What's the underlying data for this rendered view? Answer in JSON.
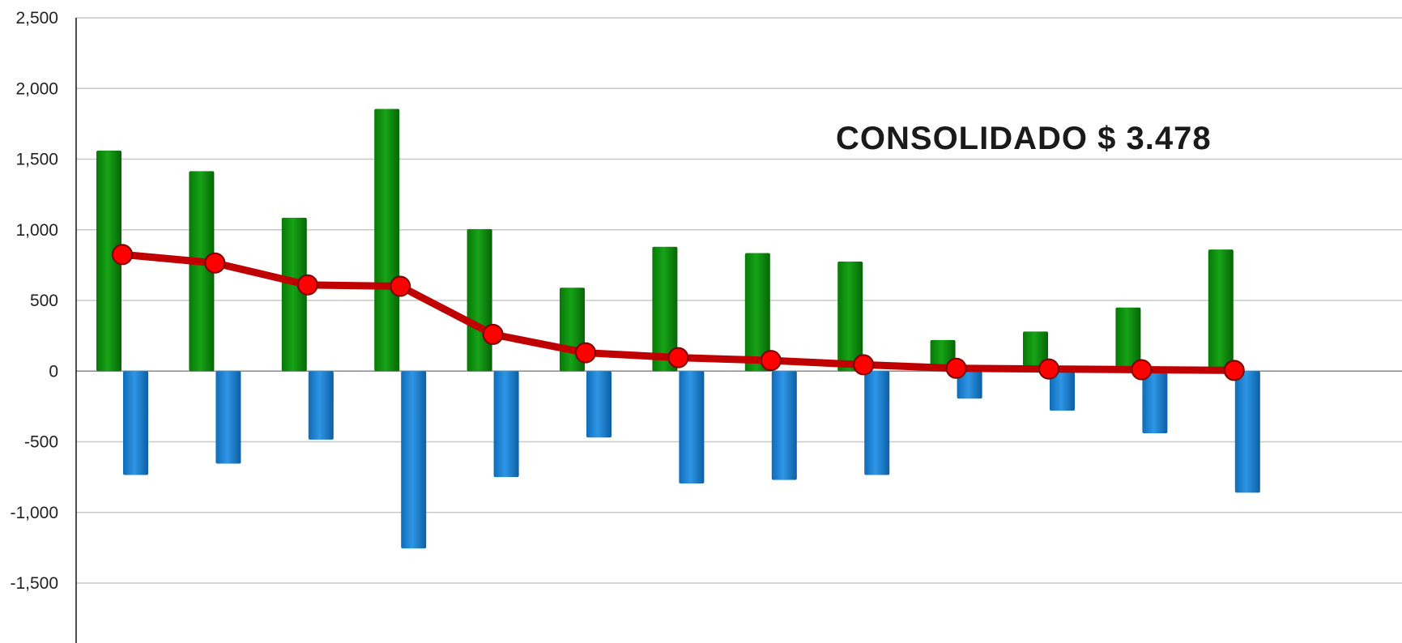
{
  "chart_data": {
    "type": "bar",
    "categories": [
      "",
      "",
      "",
      "",
      "",
      "",
      "",
      "",
      "",
      "",
      "",
      "",
      ""
    ],
    "series": [
      {
        "kind": "bar",
        "color": "#0a8a0a",
        "values": [
          1560,
          1415,
          1085,
          1855,
          1005,
          590,
          880,
          835,
          775,
          220,
          280,
          450,
          860
        ]
      },
      {
        "kind": "bar",
        "color": "#1a7fcf",
        "values": [
          -735,
          -655,
          -485,
          -1255,
          -750,
          -470,
          -795,
          -770,
          -735,
          -195,
          -280,
          -440,
          -860
        ]
      },
      {
        "kind": "line",
        "color": "#c00000",
        "marker_color": "#ff0000",
        "values": [
          825,
          765,
          610,
          600,
          260,
          130,
          95,
          75,
          45,
          20,
          15,
          10,
          5
        ]
      }
    ],
    "y_ticks": [
      "2,500",
      "2,000",
      "1,500",
      "1,000",
      "500",
      "0",
      "-500",
      "-1,000",
      "-1,500"
    ],
    "ylim": [
      -1500,
      2500
    ],
    "grid": true,
    "legend": "none",
    "annotation": "CONSOLIDADO  $  3.478"
  }
}
